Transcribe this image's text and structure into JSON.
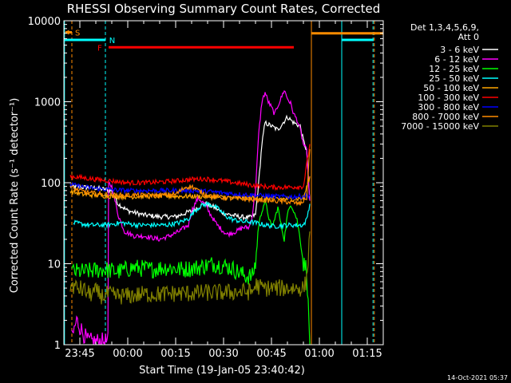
{
  "chart_data": {
    "type": "line",
    "title": "RHESSI Observing Summary Count Rates, Corrected",
    "xlabel": "Start Time (19-Jan-05 23:40:42)",
    "ylabel": "Corrected Count Rate (s⁻¹ detector⁻¹)",
    "yscale": "log",
    "ylim": [
      1,
      10000
    ],
    "xlim_minutes_after_2340": [
      0,
      100
    ],
    "x_ticks": [
      {
        "label": "23:45",
        "minutes": 5
      },
      {
        "label": "00:00",
        "minutes": 20
      },
      {
        "label": "00:15",
        "minutes": 35
      },
      {
        "label": "00:30",
        "minutes": 50
      },
      {
        "label": "00:45",
        "minutes": 65
      },
      {
        "label": "01:00",
        "minutes": 80
      },
      {
        "label": "01:15",
        "minutes": 95
      }
    ],
    "y_ticks": [
      {
        "label": "1",
        "value": 1
      },
      {
        "label": "10",
        "value": 10
      },
      {
        "label": "100",
        "value": 100
      },
      {
        "label": "1000",
        "value": 1000
      },
      {
        "label": "10000",
        "value": 10000
      }
    ],
    "legend_header": [
      "Det 1,3,4,5,6,9,",
      "Att 0"
    ],
    "legend_position": "right",
    "footer_date": "14-Oct-2021 05:37",
    "series": [
      {
        "name": "3 - 6 keV",
        "color": "#ffffff",
        "points": [
          [
            2,
            90
          ],
          [
            10,
            86
          ],
          [
            15,
            80
          ],
          [
            17,
            55
          ],
          [
            20,
            45
          ],
          [
            25,
            40
          ],
          [
            30,
            38
          ],
          [
            35,
            38
          ],
          [
            40,
            45
          ],
          [
            44,
            55
          ],
          [
            47,
            50
          ],
          [
            50,
            42
          ],
          [
            55,
            38
          ],
          [
            58,
            37
          ],
          [
            60,
            40
          ],
          [
            61,
            100
          ],
          [
            62,
            300
          ],
          [
            63,
            550
          ],
          [
            65,
            500
          ],
          [
            67,
            450
          ],
          [
            70,
            650
          ],
          [
            72,
            550
          ],
          [
            74,
            500
          ],
          [
            75,
            330
          ],
          [
            76,
            250
          ],
          [
            77,
            60
          ]
        ]
      },
      {
        "name": "6 - 12 keV",
        "color": "#ff00ff",
        "points": [
          [
            2.5,
            1.2
          ],
          [
            4,
            2
          ],
          [
            6,
            1.4
          ],
          [
            7.5,
            1.1
          ],
          [
            13.8,
            1.1
          ],
          [
            14,
            100
          ],
          [
            15,
            90
          ],
          [
            17,
            40
          ],
          [
            19,
            25
          ],
          [
            22,
            22
          ],
          [
            25,
            22
          ],
          [
            30,
            20
          ],
          [
            33,
            22
          ],
          [
            36,
            25
          ],
          [
            39,
            30
          ],
          [
            40,
            45
          ],
          [
            42,
            65
          ],
          [
            44,
            55
          ],
          [
            46,
            40
          ],
          [
            48,
            30
          ],
          [
            51,
            23
          ],
          [
            54,
            25
          ],
          [
            56,
            28
          ],
          [
            58,
            28
          ],
          [
            59,
            40
          ],
          [
            60,
            80
          ],
          [
            61,
            400
          ],
          [
            62,
            1000
          ],
          [
            63,
            1300
          ],
          [
            64,
            1000
          ],
          [
            65,
            850
          ],
          [
            66,
            700
          ],
          [
            67,
            900
          ],
          [
            68,
            1100
          ],
          [
            69,
            1400
          ],
          [
            70,
            1100
          ],
          [
            71,
            950
          ],
          [
            72,
            700
          ],
          [
            73,
            600
          ],
          [
            74,
            450
          ],
          [
            75,
            300
          ],
          [
            76,
            250
          ],
          [
            77,
            60
          ]
        ]
      },
      {
        "name": "12 - 25 keV",
        "color": "#00ff00",
        "points": [
          [
            2.5,
            8
          ],
          [
            7,
            8
          ],
          [
            12,
            8.5
          ],
          [
            17,
            8
          ],
          [
            22,
            9
          ],
          [
            27,
            8.5
          ],
          [
            32,
            9
          ],
          [
            37,
            8.5
          ],
          [
            42,
            9
          ],
          [
            47,
            10
          ],
          [
            52,
            9
          ],
          [
            57,
            7
          ],
          [
            59,
            7
          ],
          [
            60,
            10
          ],
          [
            61,
            30
          ],
          [
            62,
            45
          ],
          [
            63,
            60
          ],
          [
            64,
            40
          ],
          [
            65,
            28
          ],
          [
            66,
            35
          ],
          [
            67,
            50
          ],
          [
            68,
            30
          ],
          [
            69,
            20
          ],
          [
            70,
            40
          ],
          [
            71,
            55
          ],
          [
            72,
            45
          ],
          [
            73,
            35
          ],
          [
            74,
            20
          ],
          [
            75,
            10
          ],
          [
            76,
            9
          ],
          [
            77,
            1
          ]
        ]
      },
      {
        "name": "25 - 50 keV",
        "color": "#00ffff",
        "points": [
          [
            3,
            32
          ],
          [
            8,
            30
          ],
          [
            13,
            30
          ],
          [
            18,
            32
          ],
          [
            23,
            30
          ],
          [
            28,
            30
          ],
          [
            32,
            30
          ],
          [
            36,
            32
          ],
          [
            39,
            36
          ],
          [
            41,
            45
          ],
          [
            43,
            52
          ],
          [
            45,
            55
          ],
          [
            47,
            52
          ],
          [
            49,
            45
          ],
          [
            51,
            38
          ],
          [
            53,
            35
          ],
          [
            56,
            33
          ],
          [
            58,
            33
          ],
          [
            60,
            32
          ],
          [
            63,
            30
          ],
          [
            66,
            29
          ],
          [
            70,
            30
          ],
          [
            73,
            30
          ],
          [
            75,
            30
          ],
          [
            76,
            35
          ],
          [
            77,
            55
          ]
        ]
      },
      {
        "name": "50 - 100 keV",
        "color": "#ffa500",
        "points": [
          [
            2,
            78
          ],
          [
            6,
            72
          ],
          [
            10,
            70
          ],
          [
            15,
            68
          ],
          [
            20,
            67
          ],
          [
            25,
            68
          ],
          [
            30,
            68
          ],
          [
            35,
            68
          ],
          [
            40,
            68
          ],
          [
            45,
            67
          ],
          [
            50,
            66
          ],
          [
            55,
            65
          ],
          [
            60,
            65
          ],
          [
            65,
            64
          ],
          [
            70,
            63
          ],
          [
            75,
            64
          ],
          [
            77,
            120
          ]
        ]
      },
      {
        "name": "100 - 300 keV",
        "color": "#ff0000",
        "points": [
          [
            2,
            120
          ],
          [
            6,
            115
          ],
          [
            10,
            110
          ],
          [
            15,
            105
          ],
          [
            20,
            100
          ],
          [
            25,
            100
          ],
          [
            30,
            102
          ],
          [
            35,
            105
          ],
          [
            38,
            108
          ],
          [
            40,
            110
          ],
          [
            43,
            112
          ],
          [
            46,
            110
          ],
          [
            50,
            105
          ],
          [
            55,
            98
          ],
          [
            60,
            92
          ],
          [
            65,
            88
          ],
          [
            70,
            88
          ],
          [
            75,
            90
          ],
          [
            77,
            300
          ]
        ]
      },
      {
        "name": "300 - 800 keV",
        "color": "#0000ff",
        "points": [
          [
            2,
            95
          ],
          [
            5,
            90
          ],
          [
            10,
            85
          ],
          [
            15,
            82
          ],
          [
            20,
            80
          ],
          [
            25,
            80
          ],
          [
            30,
            80
          ],
          [
            35,
            80
          ],
          [
            40,
            80
          ],
          [
            45,
            78
          ],
          [
            50,
            75
          ],
          [
            55,
            72
          ],
          [
            60,
            70
          ],
          [
            65,
            68
          ],
          [
            70,
            67
          ],
          [
            75,
            68
          ],
          [
            77,
            70
          ]
        ]
      },
      {
        "name": "800 - 7000 keV",
        "color": "#ff8c00",
        "points": [
          [
            2,
            88
          ],
          [
            4,
            82
          ],
          [
            6,
            78
          ],
          [
            8,
            75
          ],
          [
            12,
            72
          ],
          [
            16,
            70
          ],
          [
            20,
            70
          ],
          [
            25,
            70
          ],
          [
            30,
            70
          ],
          [
            35,
            72
          ],
          [
            38,
            88
          ],
          [
            40,
            90
          ],
          [
            42,
            80
          ],
          [
            45,
            70
          ],
          [
            50,
            65
          ],
          [
            55,
            63
          ],
          [
            60,
            62
          ],
          [
            65,
            60
          ],
          [
            70,
            58
          ],
          [
            74,
            55
          ],
          [
            76,
            65
          ],
          [
            77,
            260
          ]
        ]
      },
      {
        "name": "7000 - 15000 keV",
        "color": "#808000",
        "points": [
          [
            2,
            5.5
          ],
          [
            4,
            5
          ],
          [
            6,
            4.8
          ],
          [
            8,
            4.2
          ],
          [
            10,
            4.5
          ],
          [
            12,
            4
          ],
          [
            14,
            4.2
          ],
          [
            16,
            4
          ],
          [
            20,
            4
          ],
          [
            25,
            4.2
          ],
          [
            30,
            4.2
          ],
          [
            35,
            4.3
          ],
          [
            40,
            4.3
          ],
          [
            45,
            4.4
          ],
          [
            50,
            4.4
          ],
          [
            55,
            4.5
          ],
          [
            59,
            4.5
          ],
          [
            60,
            5.5
          ],
          [
            62,
            5
          ],
          [
            65,
            5
          ],
          [
            68,
            5
          ],
          [
            72,
            5
          ],
          [
            75,
            5
          ],
          [
            76,
            6
          ],
          [
            77,
            25
          ]
        ]
      }
    ],
    "annotations": {
      "S": {
        "label": "S",
        "color": "#ff8c00"
      },
      "N": {
        "label": "N",
        "color": "#00ffff"
      },
      "F": {
        "label": "F",
        "color": "#ff0000"
      },
      "segments": [
        {
          "flag": "S",
          "color": "#ff8c00",
          "x": [
            0.5,
            2.5
          ],
          "y": 7200
        },
        {
          "flag": "N",
          "color": "#00ffff",
          "x": [
            0,
            13
          ],
          "y": 5800
        },
        {
          "flag": "F",
          "color": "#ff0000",
          "x": [
            14,
            72
          ],
          "y": 4700
        },
        {
          "flag": "orange-bar",
          "color": "#ff8c00",
          "x": [
            77.5,
            100
          ],
          "y": 7000
        },
        {
          "flag": "cyan-bar",
          "color": "#00ffff",
          "x": [
            87,
            97
          ],
          "y": 5800
        }
      ],
      "vlines": [
        {
          "color": "#ff8c00",
          "x": 2.5,
          "dashed": true
        },
        {
          "color": "#00ffff",
          "x": 13,
          "dashed": true
        },
        {
          "color": "#ff8c00",
          "x": 77.5,
          "dashed": false
        },
        {
          "color": "#00ffff",
          "x": 87,
          "dashed": false
        },
        {
          "color": "#00ffff",
          "x": 96.8,
          "dashed": true
        },
        {
          "color": "#ff8c00",
          "x": 97.2,
          "dashed": true
        },
        {
          "color": "#00ffff",
          "x": 0.2,
          "dashed": false
        }
      ]
    }
  }
}
